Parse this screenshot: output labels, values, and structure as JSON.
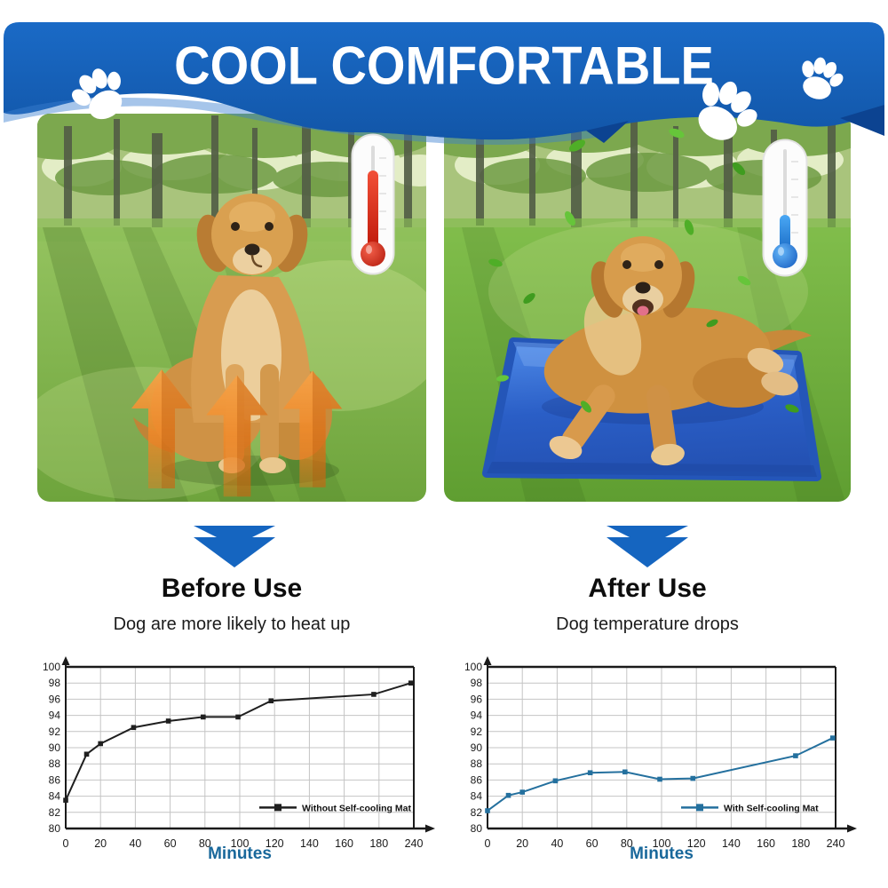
{
  "banner": {
    "title": "COOL COMFORTABLE",
    "bg_color": "#1560b7",
    "fold_color": "#0c4391",
    "paw_color": "#ffffff"
  },
  "panels": {
    "before": {
      "title": "Before Use",
      "subtitle": "Dog are more likely to heat up",
      "thermometer": "thermometer-hot-icon",
      "thermometer_color": "#d4281a",
      "heat_arrow_color": "#ef8a2b"
    },
    "after": {
      "title": "After Use",
      "subtitle": "Dog temperature drops",
      "thermometer": "thermometer-cold-icon",
      "thermometer_color": "#1e88e5",
      "mat_color": "#2f63cc",
      "leaf_color": "#4fae27"
    }
  },
  "icons": {
    "paw": "paw-icon",
    "down_arrow": "down-arrow-icon",
    "heat_arrow": "heat-arrow-icon",
    "thermometer_hot": "thermometer-hot-icon",
    "thermometer_cold": "thermometer-cold-icon",
    "leaf": "leaf-icon"
  },
  "colors": {
    "arrow_blue": "#1565c0",
    "axis_label_blue": "#19689b"
  },
  "chart_data": [
    {
      "type": "line",
      "legend": "Without Self-cooling Mat",
      "line_color": "#1f1f1f",
      "x": [
        0,
        12,
        20,
        39,
        59,
        79,
        99,
        118,
        177,
        235
      ],
      "y": [
        83.5,
        89.2,
        90.5,
        92.5,
        93.3,
        93.8,
        93.8,
        95.8,
        96.6,
        98.0
      ],
      "xticks": [
        0,
        20,
        40,
        60,
        80,
        100,
        120,
        140,
        160,
        180,
        240
      ],
      "yticks": [
        80,
        82,
        84,
        86,
        88,
        90,
        92,
        94,
        96,
        98,
        100
      ],
      "ylim": [
        80,
        100
      ],
      "xlabel": "Minutes",
      "ylabel": "",
      "grid": true,
      "legend_position": "lower right",
      "legend_y": 82.6
    },
    {
      "type": "line",
      "legend": "With Self-cooling Mat",
      "line_color": "#24709e",
      "x": [
        0,
        12,
        20,
        39,
        59,
        79,
        99,
        118,
        177,
        235
      ],
      "y": [
        82.2,
        84.1,
        84.5,
        85.9,
        86.9,
        87.0,
        86.1,
        86.2,
        89.0,
        91.2
      ],
      "xticks": [
        0,
        20,
        40,
        60,
        80,
        100,
        120,
        140,
        160,
        180,
        240
      ],
      "yticks": [
        80,
        82,
        84,
        86,
        88,
        90,
        92,
        94,
        96,
        98,
        100
      ],
      "ylim": [
        80,
        100
      ],
      "xlabel": "Minutes",
      "ylabel": "",
      "grid": true,
      "legend_position": "lower right",
      "legend_y": 82.6
    }
  ]
}
